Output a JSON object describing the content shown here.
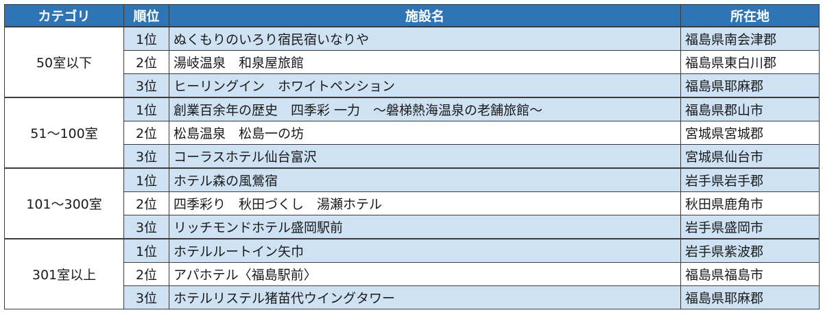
{
  "header": {
    "category": "カテゴリ",
    "rank": "順位",
    "facility": "施設名",
    "location": "所在地"
  },
  "groups": [
    {
      "category": "50室以下",
      "rows": [
        {
          "rank": "1位",
          "name": "ぬくもりのいろり宿民宿いなりや",
          "location": "福島県南会津郡"
        },
        {
          "rank": "2位",
          "name": "湯岐温泉　和泉屋旅館",
          "location": "福島県東白川郡"
        },
        {
          "rank": "3位",
          "name": "ヒーリングイン　ホワイトペンション",
          "location": "福島県耶麻郡"
        }
      ]
    },
    {
      "category": "51～100室",
      "rows": [
        {
          "rank": "1位",
          "name": "創業百余年の歴史　四季彩 一力　～磐梯熱海温泉の老舗旅館～",
          "location": "福島県郡山市"
        },
        {
          "rank": "2位",
          "name": "松島温泉　松島一の坊",
          "location": "宮城県宮城郡"
        },
        {
          "rank": "3位",
          "name": "コーラスホテル仙台富沢",
          "location": "宮城県仙台市"
        }
      ]
    },
    {
      "category": "101～300室",
      "rows": [
        {
          "rank": "1位",
          "name": "ホテル森の風鶯宿",
          "location": "岩手県岩手郡"
        },
        {
          "rank": "2位",
          "name": "四季彩り　秋田づくし　湯瀬ホテル",
          "location": "秋田県鹿角市"
        },
        {
          "rank": "3位",
          "name": "リッチモンドホテル盛岡駅前",
          "location": "岩手県盛岡市"
        }
      ]
    },
    {
      "category": "301室以上",
      "rows": [
        {
          "rank": "1位",
          "name": "ホテルルートイン矢巾",
          "location": "岩手県紫波郡"
        },
        {
          "rank": "2位",
          "name": "アパホテル〈福島駅前〉",
          "location": "福島県福島市"
        },
        {
          "rank": "3位",
          "name": "ホテルリステル猪苗代ウイングタワー",
          "location": "福島県耶麻郡"
        }
      ]
    }
  ],
  "colors": {
    "header_bg": "#2f75b5",
    "header_text": "#ffffff",
    "shaded_row": "#cfe2f3"
  }
}
